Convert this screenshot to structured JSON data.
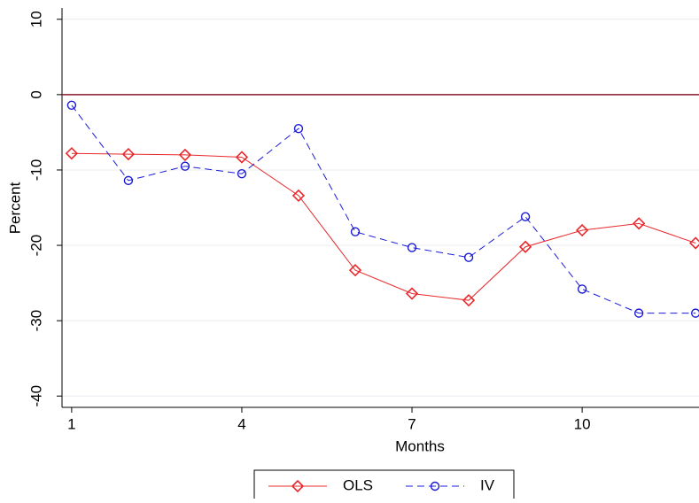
{
  "chart_data": {
    "type": "line",
    "x_label": "Months",
    "y_label": "Percent",
    "x": [
      1,
      2,
      3,
      4,
      5,
      6,
      7,
      8,
      9,
      10,
      11,
      12
    ],
    "series": [
      {
        "name": "OLS",
        "color": "#e8282b",
        "marker": "diamond",
        "dash": false,
        "values": [
          -7.8,
          -7.9,
          -8.0,
          -8.3,
          -13.4,
          -23.3,
          -26.4,
          -27.3,
          -20.2,
          -18.0,
          -17.1,
          -19.7
        ]
      },
      {
        "name": "IV",
        "color": "#1a1ad6",
        "marker": "circle",
        "dash": true,
        "values": [
          -1.4,
          -11.4,
          -9.5,
          -10.5,
          -4.5,
          -18.2,
          -20.3,
          -21.6,
          -16.2,
          -25.8,
          -29.0,
          -29.0
        ]
      }
    ],
    "xlim": [
      0.83,
      12.06
    ],
    "xticks": [
      1,
      4,
      7,
      10
    ],
    "ylim": [
      -41.5,
      11.5
    ],
    "yticks": [
      -40,
      -30,
      -20,
      -10,
      0,
      10
    ],
    "grid": true,
    "refline": 0,
    "refline_color": "#8b1a2b",
    "legend": "bottom"
  }
}
